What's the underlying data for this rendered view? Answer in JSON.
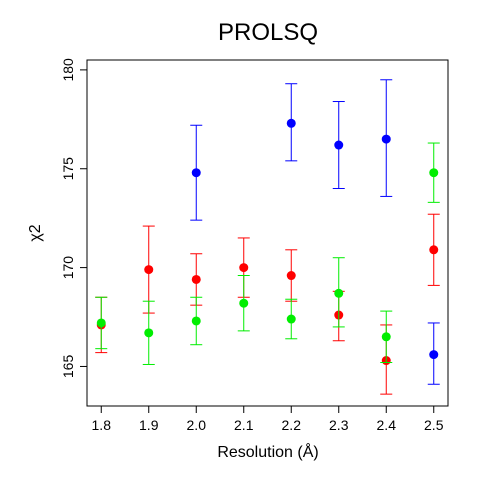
{
  "chart_data": {
    "type": "scatter",
    "title": "PROLSQ",
    "xlabel": "Resolution (Å)",
    "ylabel": "χ2",
    "xlim": [
      1.77,
      2.53
    ],
    "ylim": [
      163.0,
      180.5
    ],
    "x_ticks": [
      "1.8",
      "1.9",
      "2.0",
      "2.1",
      "2.2",
      "2.3",
      "2.4",
      "2.5"
    ],
    "y_ticks": [
      "165",
      "170",
      "175",
      "180"
    ],
    "grid": false,
    "legend": "none",
    "series": [
      {
        "color": "#0000ff",
        "points": [
          {
            "x": 2.0,
            "y": 174.8,
            "lo": 172.4,
            "hi": 177.2
          },
          {
            "x": 2.2,
            "y": 177.3,
            "lo": 175.4,
            "hi": 179.3
          },
          {
            "x": 2.3,
            "y": 176.2,
            "lo": 174.0,
            "hi": 178.4
          },
          {
            "x": 2.4,
            "y": 176.5,
            "lo": 173.6,
            "hi": 179.5
          },
          {
            "x": 2.5,
            "y": 165.6,
            "lo": 164.1,
            "hi": 167.2
          }
        ]
      },
      {
        "color": "#ff0000",
        "points": [
          {
            "x": 1.8,
            "y": 167.1,
            "lo": 165.7,
            "hi": 168.5
          },
          {
            "x": 1.9,
            "y": 169.9,
            "lo": 167.7,
            "hi": 172.1
          },
          {
            "x": 2.0,
            "y": 169.4,
            "lo": 168.1,
            "hi": 170.7
          },
          {
            "x": 2.1,
            "y": 170.0,
            "lo": 168.5,
            "hi": 171.5
          },
          {
            "x": 2.2,
            "y": 169.6,
            "lo": 168.3,
            "hi": 170.9
          },
          {
            "x": 2.3,
            "y": 167.6,
            "lo": 166.3,
            "hi": 168.8
          },
          {
            "x": 2.4,
            "y": 165.3,
            "lo": 163.6,
            "hi": 167.1
          },
          {
            "x": 2.5,
            "y": 170.9,
            "lo": 169.1,
            "hi": 172.7
          }
        ]
      },
      {
        "color": "#00ee00",
        "points": [
          {
            "x": 1.8,
            "y": 167.2,
            "lo": 165.9,
            "hi": 168.5
          },
          {
            "x": 1.9,
            "y": 166.7,
            "lo": 165.1,
            "hi": 168.3
          },
          {
            "x": 2.0,
            "y": 167.3,
            "lo": 166.1,
            "hi": 168.5
          },
          {
            "x": 2.1,
            "y": 168.2,
            "lo": 166.8,
            "hi": 169.6
          },
          {
            "x": 2.2,
            "y": 167.4,
            "lo": 166.4,
            "hi": 168.4
          },
          {
            "x": 2.3,
            "y": 168.7,
            "lo": 167.0,
            "hi": 170.5
          },
          {
            "x": 2.4,
            "y": 166.5,
            "lo": 165.2,
            "hi": 167.8
          },
          {
            "x": 2.5,
            "y": 174.8,
            "lo": 173.3,
            "hi": 176.3
          }
        ]
      }
    ]
  }
}
